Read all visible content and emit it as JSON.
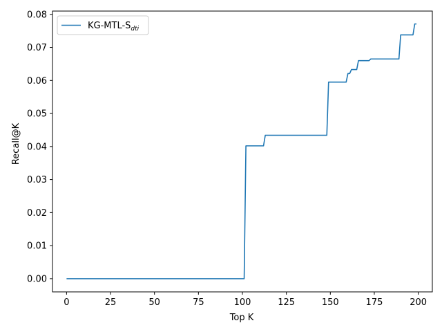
{
  "chart_data": {
    "type": "line",
    "title": "",
    "xlabel": "Top K",
    "ylabel": "Recall@K",
    "xlim": [
      -8,
      208
    ],
    "ylim": [
      -0.004,
      0.081
    ],
    "xticks": [
      0,
      25,
      50,
      75,
      100,
      125,
      150,
      175,
      200
    ],
    "yticks": [
      0.0,
      0.01,
      0.02,
      0.03,
      0.04,
      0.05,
      0.06,
      0.07,
      0.08
    ],
    "xtick_labels": [
      "0",
      "25",
      "50",
      "75",
      "100",
      "125",
      "150",
      "175",
      "200"
    ],
    "ytick_labels": [
      "0.00",
      "0.01",
      "0.02",
      "0.03",
      "0.04",
      "0.05",
      "0.06",
      "0.07",
      "0.08"
    ],
    "grid": false,
    "legend_position": "top-left",
    "series": [
      {
        "name": "KG-MTL-S",
        "name_subscript": "dti",
        "color": "#1f77b4",
        "x": [
          0,
          101,
          102,
          112,
          113,
          148,
          149,
          159,
          160,
          161,
          162,
          165,
          166,
          172,
          173,
          189,
          190,
          197,
          198,
          199
        ],
        "y": [
          0.0,
          0.0,
          0.0402,
          0.0402,
          0.0434,
          0.0434,
          0.0595,
          0.0595,
          0.0621,
          0.0621,
          0.0633,
          0.0633,
          0.066,
          0.066,
          0.0665,
          0.0665,
          0.0738,
          0.0738,
          0.0771,
          0.0771
        ]
      }
    ]
  }
}
